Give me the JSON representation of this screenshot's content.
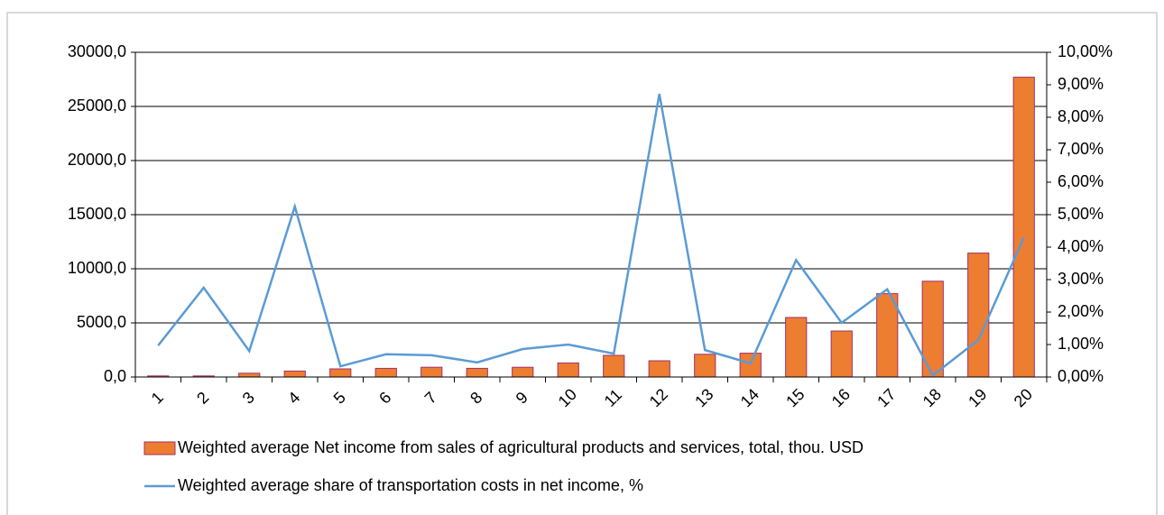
{
  "chart_data": {
    "type": "bar_line",
    "categories": [
      "1",
      "2",
      "3",
      "4",
      "5",
      "6",
      "7",
      "8",
      "9",
      "10",
      "11",
      "12",
      "13",
      "14",
      "15",
      "16",
      "17",
      "18",
      "19",
      "20"
    ],
    "series": [
      {
        "name": "Weighted average  Net income from sales of agricultural products and services, total, thou. USD",
        "type": "bar",
        "color": "#ed7d31",
        "stroke": "#a0306a",
        "values": [
          100,
          100,
          350,
          550,
          750,
          800,
          900,
          800,
          900,
          1300,
          2000,
          1500,
          2100,
          2200,
          5500,
          4250,
          7700,
          8850,
          11450,
          27700
        ]
      },
      {
        "name": "Weighted average share of transportation costs in net income, %",
        "type": "line",
        "color": "#5b9bd5",
        "axis": "y2",
        "values": [
          0.97,
          2.75,
          0.8,
          5.25,
          0.33,
          0.7,
          0.67,
          0.45,
          0.86,
          1.0,
          0.72,
          8.72,
          0.83,
          0.42,
          3.6,
          1.67,
          2.7,
          0.05,
          1.14,
          4.3
        ]
      }
    ],
    "ylim": [
      0,
      30000
    ],
    "yticks": [
      {
        "value": 0,
        "label": "0,0"
      },
      {
        "value": 5000,
        "label": "5000,0"
      },
      {
        "value": 10000,
        "label": "10000,0"
      },
      {
        "value": 15000,
        "label": "15000,0"
      },
      {
        "value": 20000,
        "label": "20000,0"
      },
      {
        "value": 25000,
        "label": "25000,0"
      },
      {
        "value": 30000,
        "label": "30000,0"
      }
    ],
    "y2lim": [
      0,
      10
    ],
    "y2ticks": [
      {
        "value": 0,
        "label": "0,00%"
      },
      {
        "value": 1,
        "label": "1,00%"
      },
      {
        "value": 2,
        "label": "2,00%"
      },
      {
        "value": 3,
        "label": "3,00%"
      },
      {
        "value": 4,
        "label": "4,00%"
      },
      {
        "value": 5,
        "label": "5,00%"
      },
      {
        "value": 6,
        "label": "6,00%"
      },
      {
        "value": 7,
        "label": "7,00%"
      },
      {
        "value": 8,
        "label": "8,00%"
      },
      {
        "value": 9,
        "label": "9,00%"
      },
      {
        "value": 10,
        "label": "10,00%"
      }
    ],
    "grid": true,
    "legend": "bottom"
  }
}
